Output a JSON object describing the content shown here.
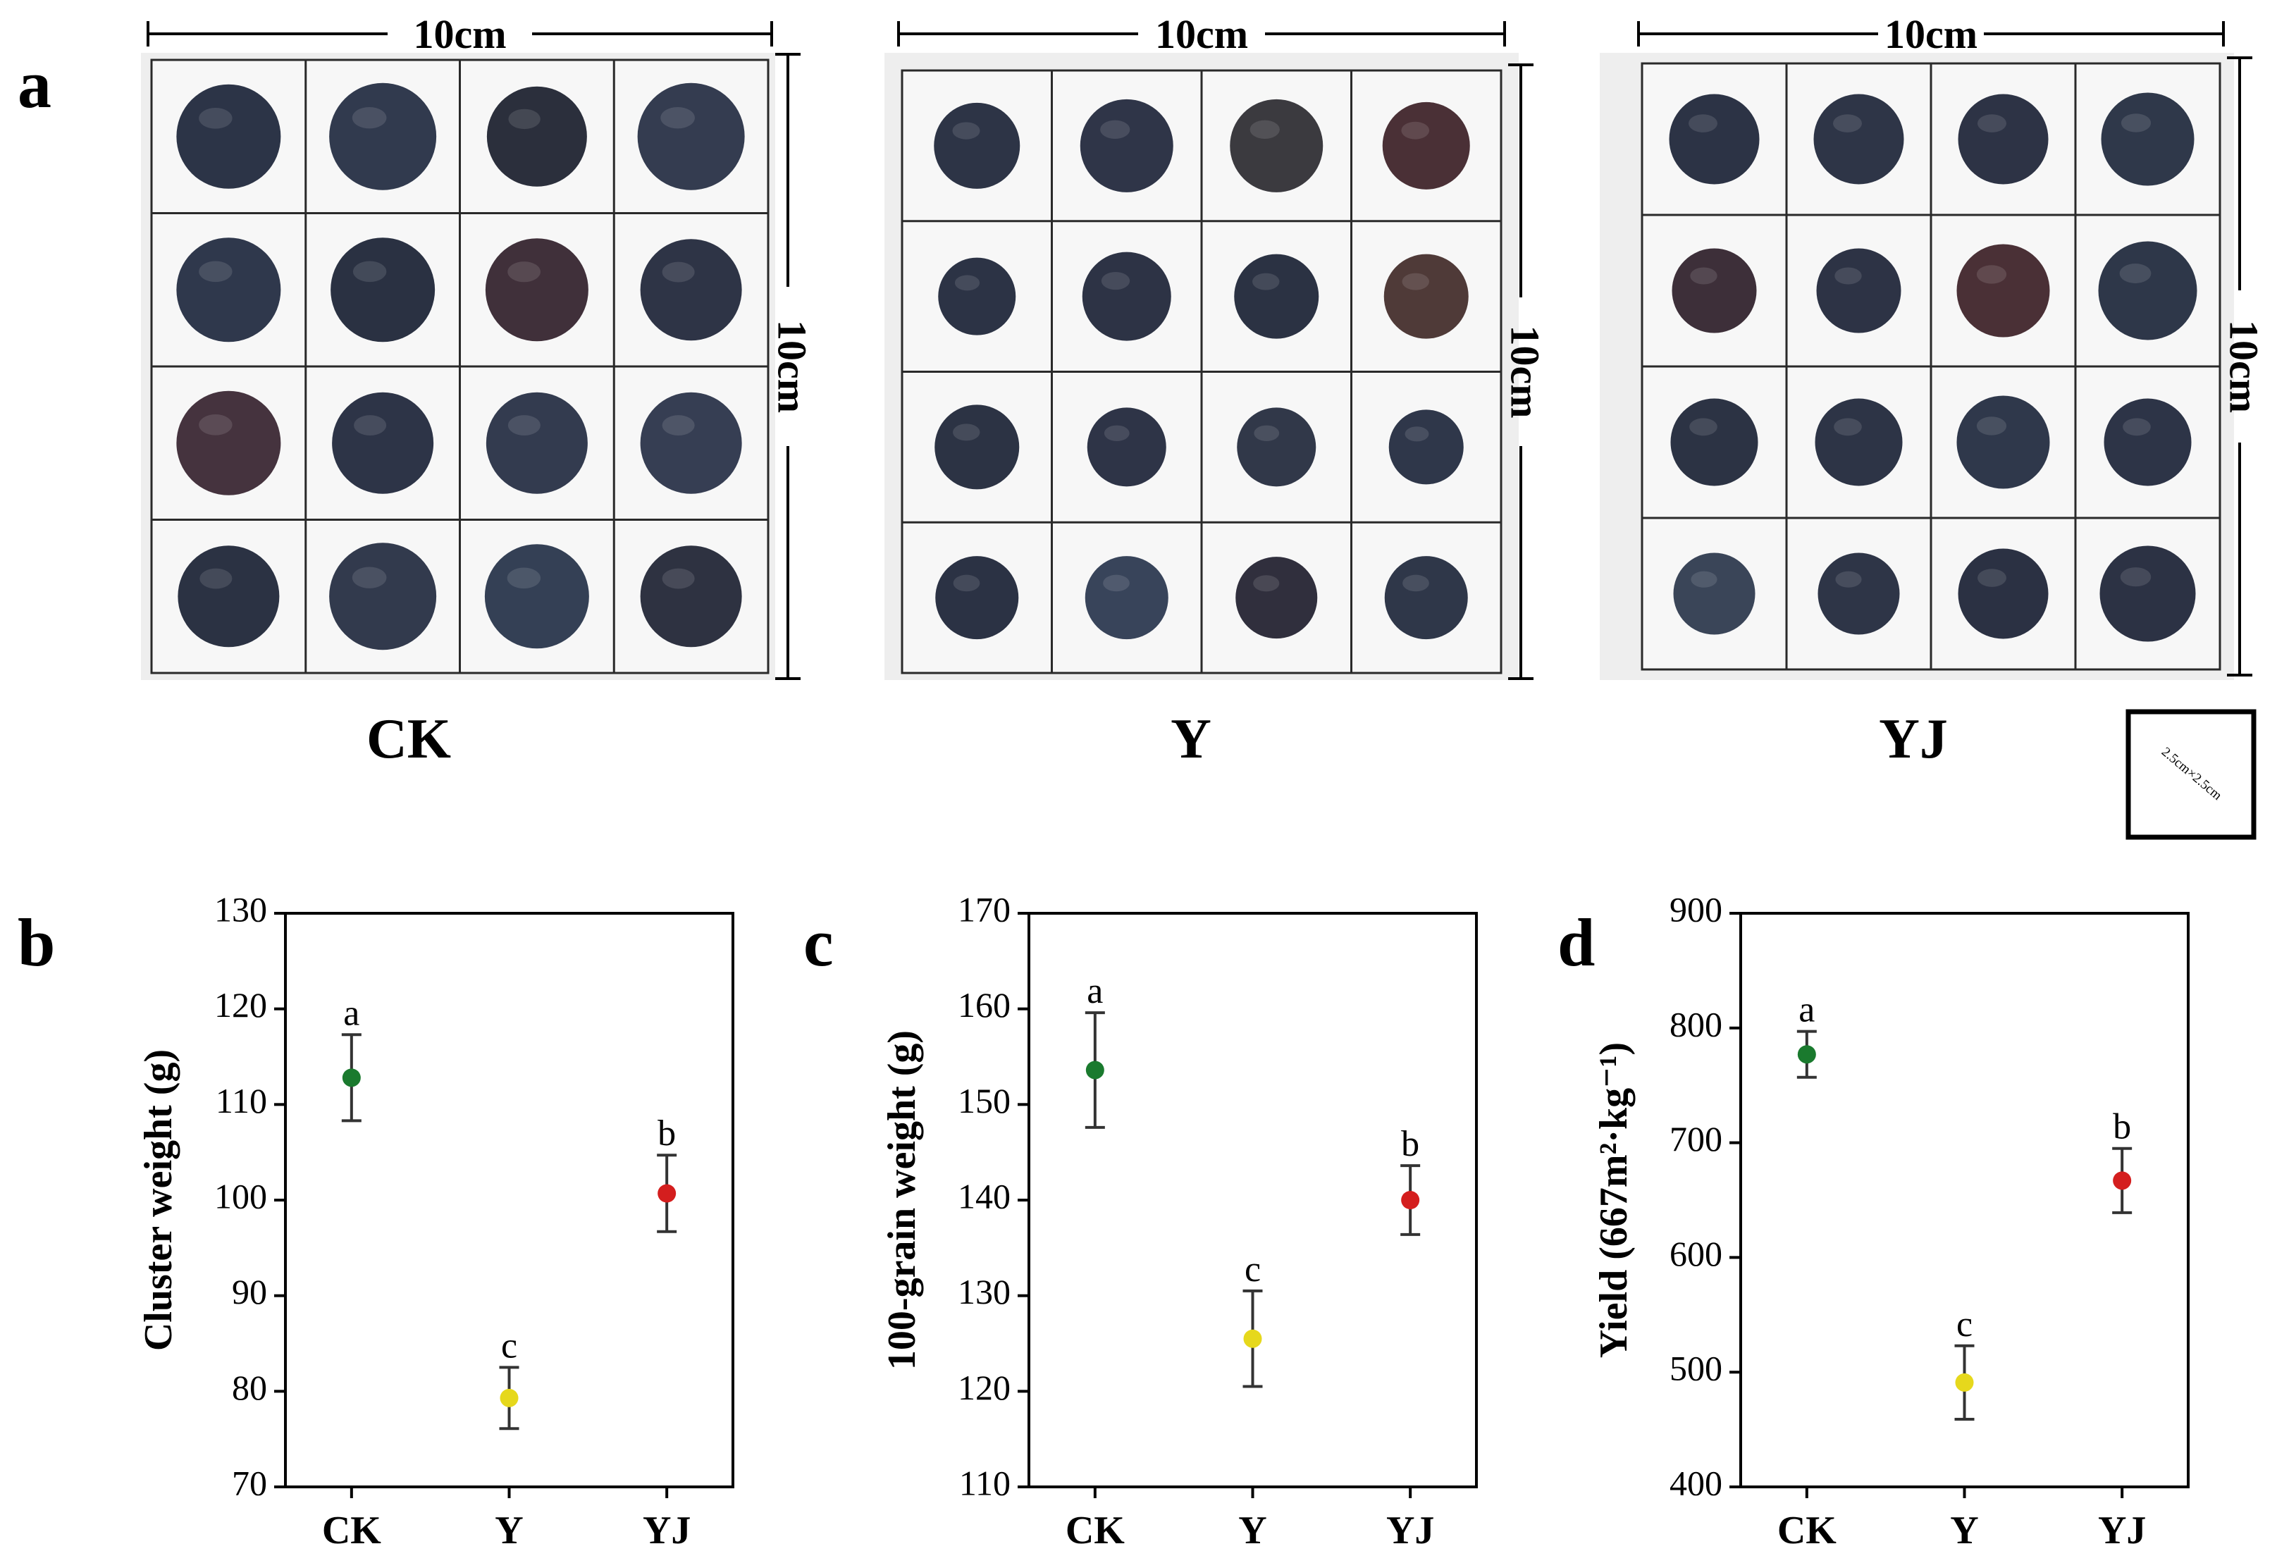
{
  "panel_a": {
    "letter": "a",
    "scale_label": "10cm",
    "cell_note": "2.5cm×2.5cm",
    "groups": [
      {
        "name": "CK",
        "berry_colors": [
          [
            "#2c3447",
            "#313a4e",
            "#2b2f3c",
            "#343c50"
          ],
          [
            "#2f384c",
            "#2a3142",
            "#40303a",
            "#2e3446"
          ],
          [
            "#45333e",
            "#2d3447",
            "#333b4f",
            "#363e53"
          ],
          [
            "#2b3243",
            "#323a4d",
            "#344055",
            "#2e3241"
          ]
        ]
      },
      {
        "name": "Y",
        "berry_colors": [
          [
            "#2d3446",
            "#2f3548",
            "#3b3a3f",
            "#4a3036"
          ],
          [
            "#2c3345",
            "#2d3345",
            "#2b3243",
            "#4f3a38"
          ],
          [
            "#2c3344",
            "#2e3447",
            "#313849",
            "#2f374a"
          ],
          [
            "#2b3244",
            "#38445a",
            "#302f3d",
            "#2f3749"
          ]
        ]
      },
      {
        "name": "YJ",
        "berry_colors": [
          [
            "#2c3345",
            "#2e3547",
            "#2d3345",
            "#2f384a"
          ],
          [
            "#3d2f39",
            "#2d3345",
            "#4a3036",
            "#2e3749"
          ],
          [
            "#2c3344",
            "#2d3446",
            "#2f384b",
            "#2d3447"
          ],
          [
            "#3a4558",
            "#2e3547",
            "#2b3143",
            "#2c3244"
          ]
        ]
      }
    ]
  },
  "chart_data": [
    {
      "type": "scatter",
      "letter": "b",
      "ylabel": "Cluster weight (g)",
      "categories": [
        "CK",
        "Y",
        "YJ"
      ],
      "values": [
        112.8,
        79.3,
        100.7
      ],
      "errors": [
        4.5,
        3.2,
        4.0
      ],
      "sig_letters": [
        "a",
        "c",
        "b"
      ],
      "colors": [
        "#1a7a2e",
        "#e6d81c",
        "#d41e1e"
      ],
      "ylim": [
        70,
        130
      ],
      "yticks": [
        "70",
        "80",
        "90",
        "100",
        "110",
        "120",
        "130"
      ]
    },
    {
      "type": "scatter",
      "letter": "c",
      "ylabel": "100-grain weight (g)",
      "categories": [
        "CK",
        "Y",
        "YJ"
      ],
      "values": [
        153.6,
        125.5,
        140.0
      ],
      "errors": [
        6.0,
        5.0,
        3.6
      ],
      "sig_letters": [
        "a",
        "c",
        "b"
      ],
      "colors": [
        "#1a7a2e",
        "#e6d81c",
        "#d41e1e"
      ],
      "ylim": [
        110,
        170
      ],
      "yticks": [
        "110",
        "120",
        "130",
        "140",
        "150",
        "160",
        "170"
      ]
    },
    {
      "type": "scatter",
      "letter": "d",
      "ylabel": "Yield (667m²·kg⁻¹)",
      "categories": [
        "CK",
        "Y",
        "YJ"
      ],
      "values": [
        777,
        491,
        667
      ],
      "errors": [
        20,
        32,
        28
      ],
      "sig_letters": [
        "a",
        "c",
        "b"
      ],
      "colors": [
        "#1a7a2e",
        "#e6d81c",
        "#d41e1e"
      ],
      "ylim": [
        400,
        900
      ],
      "yticks": [
        "400",
        "500",
        "600",
        "700",
        "800",
        "900"
      ]
    }
  ]
}
